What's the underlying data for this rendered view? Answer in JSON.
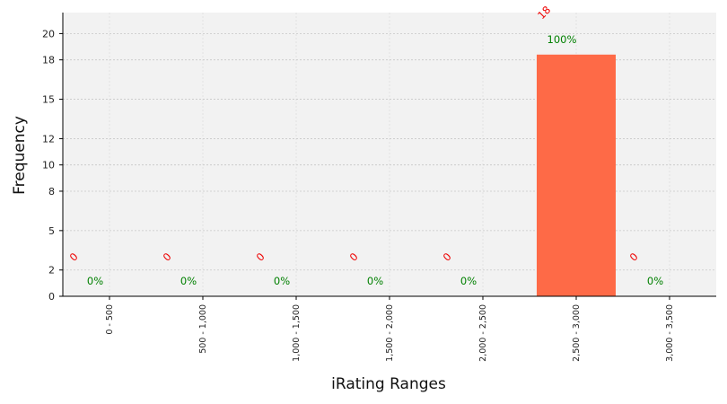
{
  "chart_data": {
    "type": "bar",
    "title": "",
    "xlabel": "iRating Ranges",
    "ylabel": "Frequency",
    "categories": [
      "0 - 500",
      "500 - 1,000",
      "1,000 - 1,500",
      "1,500 - 2,000",
      "2,000 - 2,500",
      "2,500 - 3,000",
      "3,000 - 3,500"
    ],
    "values": [
      0,
      0,
      0,
      0,
      0,
      18.4,
      0
    ],
    "count_labels": [
      "0",
      "0",
      "0",
      "0",
      "0",
      "18",
      "0"
    ],
    "percent_labels": [
      "0%",
      "0%",
      "0%",
      "0%",
      "0%",
      "100%",
      "0%"
    ],
    "yticks": [
      0,
      2,
      5,
      8,
      10,
      12,
      15,
      18,
      20
    ],
    "ylim": [
      0,
      21.6
    ],
    "grid": true,
    "colors": {
      "bar": "#fe6a47",
      "plot_background": "#f2f2f2",
      "count_label": "#ee0000",
      "percent_label": "#008000",
      "grid": "#c8c8c8"
    }
  }
}
